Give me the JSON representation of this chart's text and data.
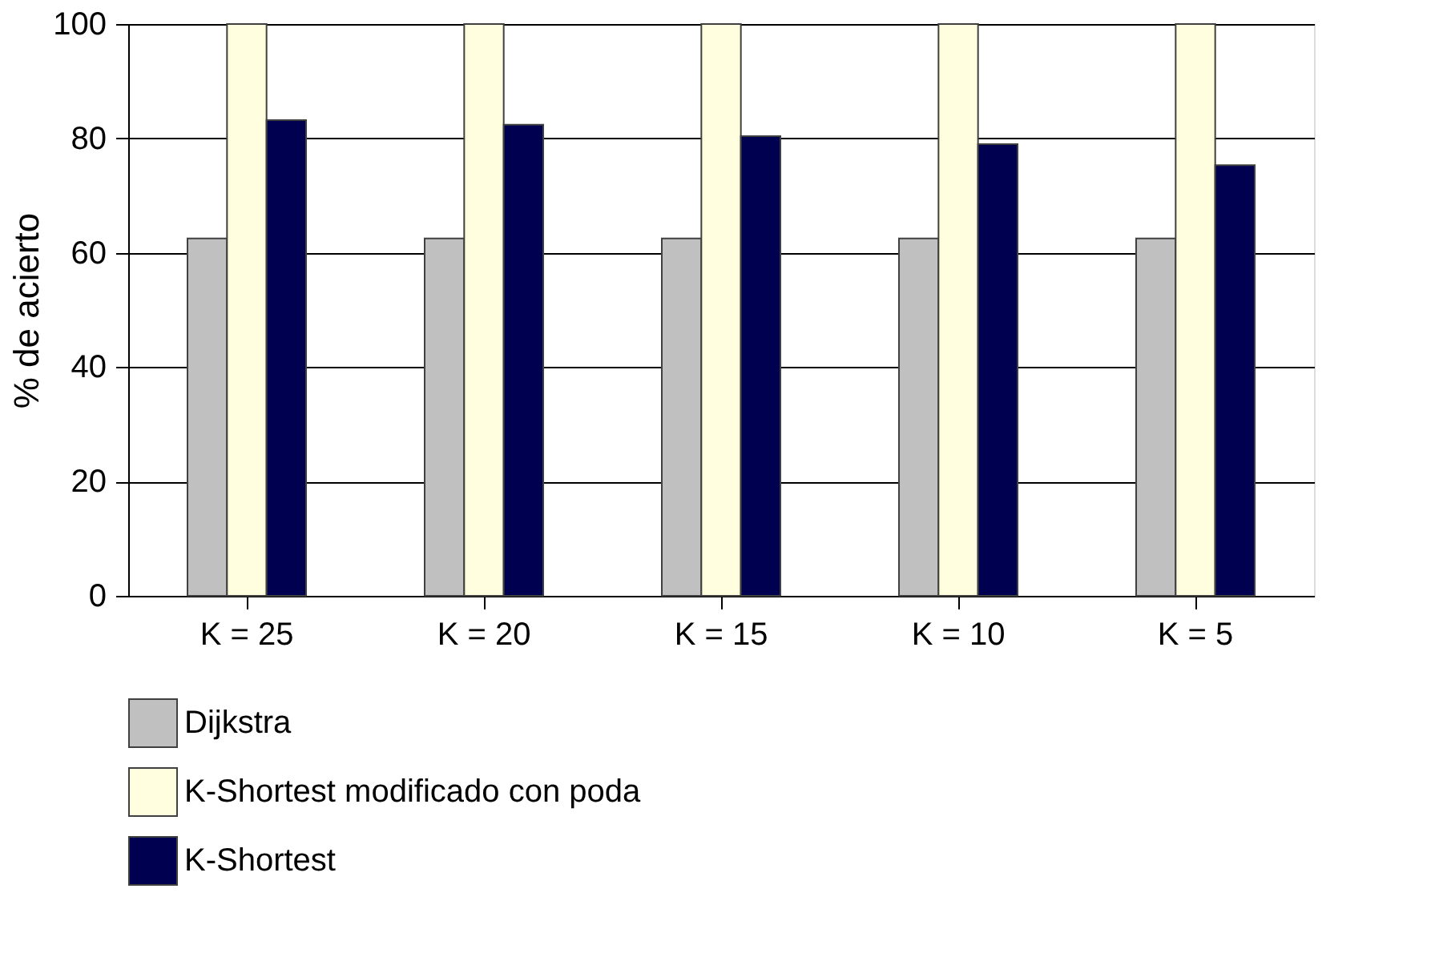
{
  "chart_data": {
    "type": "bar",
    "ylabel": "% de acierto",
    "categories": [
      "K = 25",
      "K = 20",
      "K = 15",
      "K = 10",
      "K = 5"
    ],
    "series": [
      {
        "name": "Dijkstra",
        "color": "#c0c0c0",
        "values": [
          62.5,
          62.5,
          62.5,
          62.5,
          62.5
        ]
      },
      {
        "name": "K-Shortest modificado con poda",
        "color": "#ffffe0",
        "values": [
          100,
          100,
          100,
          100,
          100
        ]
      },
      {
        "name": "K-Shortest",
        "color": "#000050",
        "values": [
          83.2,
          82.4,
          80.4,
          79,
          75.3
        ]
      }
    ],
    "ylim": [
      0,
      100
    ],
    "yticks": [
      0,
      20,
      40,
      60,
      80,
      100
    ],
    "grid": "y",
    "legend": "bottom"
  }
}
